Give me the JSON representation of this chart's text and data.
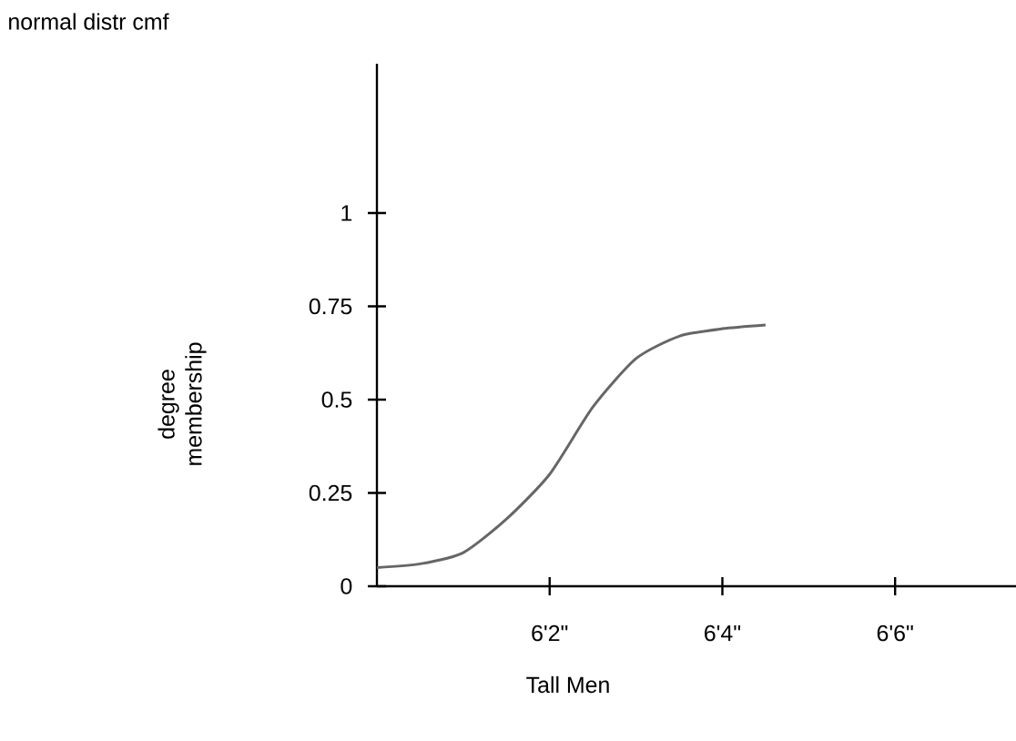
{
  "chart_data": {
    "type": "line",
    "title": "normal distr cmf",
    "xlabel": "Tall Men",
    "ylabel": "degree membership",
    "categories": [
      null,
      null,
      null,
      null,
      "6'2\"",
      null,
      null,
      null,
      "6'4\"",
      null,
      null,
      null,
      "6'6\"",
      null,
      null
    ],
    "values": [
      0.05,
      0.06,
      0.09,
      0.18,
      0.3,
      0.48,
      0.61,
      0.67,
      0.69,
      0.7,
      null,
      null,
      null,
      null,
      null
    ],
    "color": "#666666",
    "ylim": [
      0,
      1.4
    ],
    "yticks": [
      0,
      0.25,
      0.5,
      0.75,
      1
    ],
    "grid": false
  }
}
